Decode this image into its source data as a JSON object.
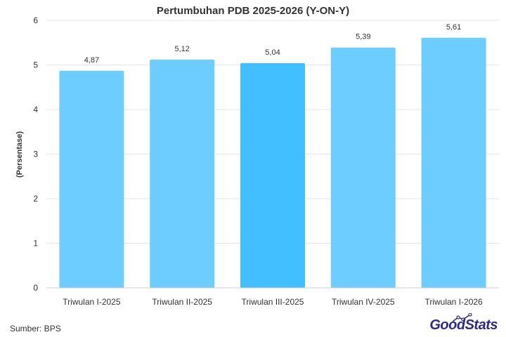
{
  "chart_data": {
    "type": "bar",
    "title": "Pertumbuhan PDB 2025-2026 (Y-ON-Y)",
    "xlabel": "",
    "ylabel": "(Persentase)",
    "ylim": [
      0,
      6
    ],
    "yticks": [
      0,
      1,
      2,
      3,
      4,
      5,
      6
    ],
    "grid": true,
    "categories": [
      "Triwulan I-2025",
      "Triwulan II-2025",
      "Triwulan III-2025",
      "Triwulan IV-2025",
      "Triwulan I-2026"
    ],
    "values": [
      4.87,
      5.12,
      5.04,
      5.39,
      5.61
    ],
    "data_labels": [
      "4,87",
      "5,12",
      "5,04",
      "5,39",
      "5,61"
    ],
    "colors": [
      "#6dcdff",
      "#6dcdff",
      "#42bfff",
      "#6dcdff",
      "#6dcdff"
    ]
  },
  "footer": {
    "source": "Sumber: BPS",
    "logo_good": "Good",
    "logo_stats": "Stats"
  }
}
